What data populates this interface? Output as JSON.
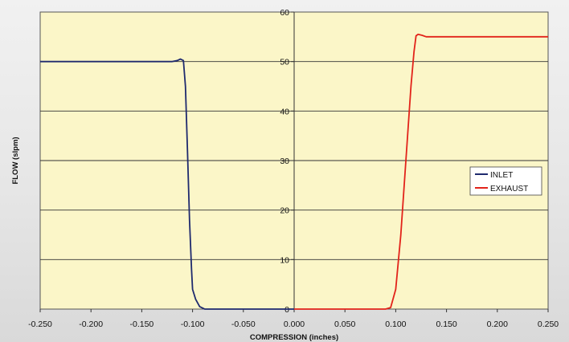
{
  "chart_data": {
    "type": "line",
    "title": "",
    "xlabel": "COMPRESSION (inches)",
    "ylabel": "FLOW (slpm)",
    "xlim": [
      -0.25,
      0.25
    ],
    "ylim": [
      0,
      60
    ],
    "x_ticks": [
      "-0.250",
      "-0.200",
      "-0.150",
      "-0.100",
      "-0.050",
      "0.000",
      "0.050",
      "0.100",
      "0.150",
      "0.200",
      "0.250"
    ],
    "y_ticks": [
      "0",
      "10",
      "20",
      "30",
      "40",
      "50",
      "60"
    ],
    "grid": "horizontal",
    "legend_position": "right",
    "plot_background": "#fbf6c8",
    "series": [
      {
        "name": "INLET",
        "color": "#1f2a6e",
        "points": [
          [
            -0.25,
            50
          ],
          [
            -0.12,
            50
          ],
          [
            -0.115,
            50.2
          ],
          [
            -0.112,
            50.5
          ],
          [
            -0.109,
            50.2
          ],
          [
            -0.107,
            45
          ],
          [
            -0.105,
            32
          ],
          [
            -0.103,
            18
          ],
          [
            -0.101,
            8
          ],
          [
            -0.1,
            4
          ],
          [
            -0.097,
            2
          ],
          [
            -0.093,
            0.5
          ],
          [
            -0.088,
            0
          ],
          [
            -0.05,
            0
          ],
          [
            0.0,
            0
          ]
        ]
      },
      {
        "name": "EXHAUST",
        "color": "#e2231a",
        "points": [
          [
            0.0,
            0
          ],
          [
            0.09,
            0
          ],
          [
            0.095,
            0.3
          ],
          [
            0.1,
            4
          ],
          [
            0.105,
            15
          ],
          [
            0.11,
            30
          ],
          [
            0.115,
            45
          ],
          [
            0.118,
            52
          ],
          [
            0.12,
            55.2
          ],
          [
            0.122,
            55.5
          ],
          [
            0.126,
            55.3
          ],
          [
            0.13,
            55
          ],
          [
            0.25,
            55
          ]
        ]
      }
    ]
  }
}
